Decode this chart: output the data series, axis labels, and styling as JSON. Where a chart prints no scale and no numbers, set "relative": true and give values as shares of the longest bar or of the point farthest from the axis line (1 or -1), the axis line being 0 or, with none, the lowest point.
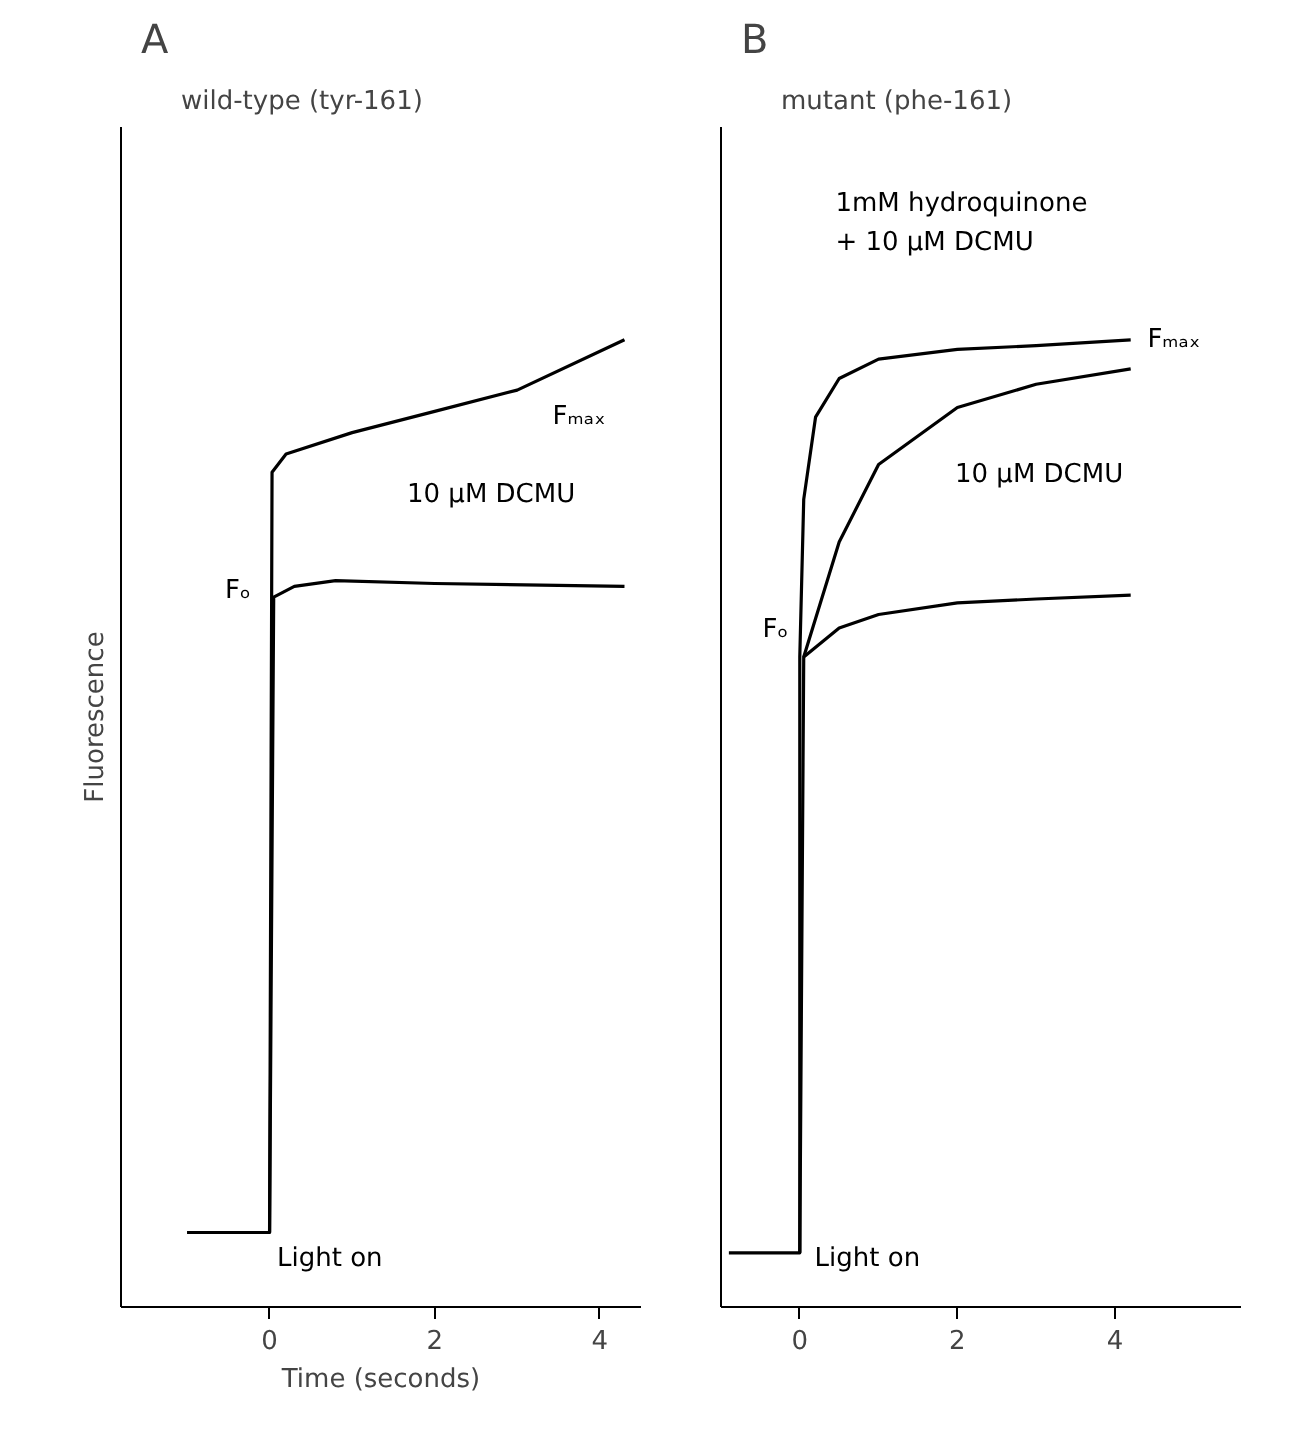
{
  "chart_data": [
    {
      "type": "line",
      "title": "A",
      "subtitle": "wild-type (tyr-161)",
      "xlabel": "Time (seconds)",
      "ylabel": "Fluorescence",
      "relative": true,
      "xlim": [
        -1.8,
        4.5
      ],
      "xticks": [
        0,
        2,
        4
      ],
      "tick_labels": "x",
      "grid": false,
      "series": [
        {
          "color": "#000000",
          "x": [
            -1,
            0,
            0,
            0.05,
            0.3,
            0.8,
            2,
            4.3
          ],
          "values": [
            0.077,
            0.077,
            0.077,
            0.734,
            0.745,
            0.751,
            0.748,
            0.745
          ]
        },
        {
          "color": "#000000",
          "x": [
            0,
            0.03,
            0.2,
            1,
            2,
            3,
            4.3
          ],
          "values": [
            0.077,
            0.863,
            0.882,
            0.904,
            0.926,
            0.948,
            1.0
          ]
        }
      ],
      "annotations": [
        "Fₘₐₓ",
        "10 μM DCMU",
        "Fₒ",
        "Light on"
      ]
    },
    {
      "type": "line",
      "title": "B",
      "subtitle": "mutant (phe-161)",
      "relative": true,
      "xlim": [
        -1.0,
        5.6
      ],
      "xticks": [
        0,
        2,
        4
      ],
      "tick_labels": "x",
      "grid": false,
      "series": [
        {
          "color": "#000000",
          "x": [
            -0.9,
            0,
            0,
            0.05,
            0.5,
            1,
            2,
            3,
            4.2
          ],
          "values": [
            0.056,
            0.056,
            0.056,
            0.672,
            0.702,
            0.716,
            0.728,
            0.732,
            0.736
          ]
        },
        {
          "color": "#000000",
          "x": [
            0.05,
            0.5,
            1,
            2,
            3,
            4.2
          ],
          "values": [
            0.672,
            0.791,
            0.871,
            0.93,
            0.954,
            0.97
          ]
        },
        {
          "color": "#000000",
          "x": [
            0,
            0,
            0.05,
            0.2,
            0.5,
            1,
            2,
            3,
            4.2
          ],
          "values": [
            0.056,
            0.672,
            0.835,
            0.92,
            0.96,
            0.98,
            0.99,
            0.994,
            1.0
          ]
        }
      ],
      "annotations": [
        "Fₘₐₓ",
        "10 μM DCMU",
        "Fₒ",
        "Light on",
        "1mM hydroquinone\n+ 10 μM DCMU"
      ]
    }
  ]
}
